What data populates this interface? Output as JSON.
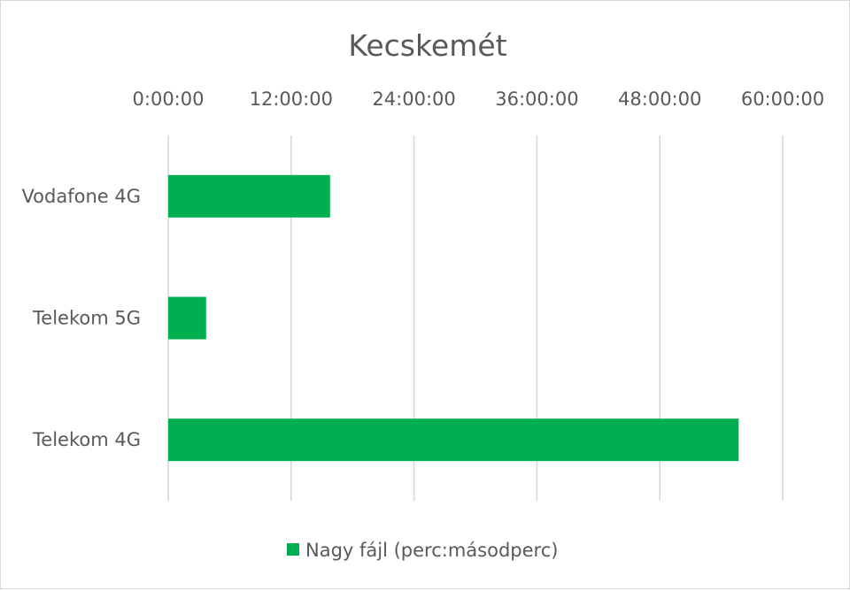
{
  "chart_data": {
    "type": "bar",
    "orientation": "horizontal",
    "title": "Kecskemét",
    "xlabel": "",
    "ylabel": "",
    "x_axis_position": "top",
    "xlim": [
      0,
      60
    ],
    "x_ticks": [
      0,
      12,
      24,
      36,
      48,
      60
    ],
    "x_tick_labels": [
      "0:00:00",
      "12:00:00",
      "24:00:00",
      "36:00:00",
      "48:00:00",
      "60:00:00"
    ],
    "categories": [
      "Vodafone 4G",
      "Telekom 5G",
      "Telekom 4G"
    ],
    "series": [
      {
        "name": "Nagy fájl (perc:másodperc)",
        "color": "#00b050",
        "values": [
          15.8,
          3.7,
          55.7
        ]
      }
    ],
    "grid": true,
    "legend_position": "bottom"
  }
}
